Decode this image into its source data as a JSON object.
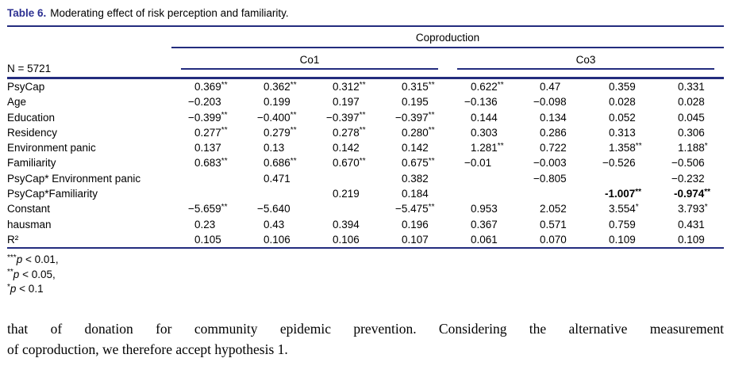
{
  "colors": {
    "rule_navy": "#232c7e",
    "title_navy": "#2d3192",
    "text": "#000000"
  },
  "caption": {
    "label": "Table 6.",
    "text": "Moderating effect of risk perception and familiarity."
  },
  "table": {
    "n_label": "N = 5721",
    "group_header": "Coproduction",
    "subgroups": [
      "Co1",
      "Co3"
    ],
    "rows": [
      {
        "label": "PsyCap",
        "cells": [
          "0.369**",
          "0.362**",
          "0.312**",
          "0.315**",
          "0.622**",
          "0.47",
          "0.359",
          "0.331"
        ]
      },
      {
        "label": "Age",
        "cells": [
          "−0.203",
          "0.199",
          "0.197",
          "0.195",
          "−0.136",
          "−0.098",
          "0.028",
          "0.028"
        ]
      },
      {
        "label": "Education",
        "cells": [
          "−0.399**",
          "−0.400**",
          "−0.397**",
          "−0.397**",
          "0.144",
          "0.134",
          "0.052",
          "0.045"
        ]
      },
      {
        "label": "Residency",
        "cells": [
          "0.277**",
          "0.279**",
          "0.278**",
          "0.280**",
          "0.303",
          "0.286",
          "0.313",
          "0.306"
        ]
      },
      {
        "label": "Environment panic",
        "cells": [
          "0.137",
          "0.13",
          "0.142",
          "0.142",
          "1.281**",
          "0.722",
          "1.358**",
          "1.188*"
        ]
      },
      {
        "label": "Familiarity",
        "cells": [
          "0.683**",
          "0.686**",
          "0.670**",
          "0.675**",
          "−0.01",
          "−0.003",
          "−0.526",
          "−0.506"
        ]
      },
      {
        "label": "PsyCap* Environment panic",
        "cells": [
          "",
          "0.471",
          "",
          "0.382",
          "",
          "−0.805",
          "",
          "−0.232"
        ]
      },
      {
        "label": "PsyCap*Familiarity",
        "cells": [
          "",
          "",
          "0.219",
          "0.184",
          "",
          "",
          {
            "v": "-1.007**",
            "bold": true
          },
          {
            "v": "-0.974**",
            "bold": true
          }
        ]
      },
      {
        "label": "Constant",
        "cells": [
          "−5.659**",
          "−5.640",
          "",
          "−5.475**",
          "0.953",
          "2.052",
          "3.554*",
          "3.793*"
        ]
      },
      {
        "label": "hausman",
        "cells": [
          "0.23",
          "0.43",
          "0.394",
          "0.196",
          "0.367",
          "0.571",
          "0.759",
          "0.431"
        ]
      },
      {
        "label": "R²",
        "cells": [
          "0.105",
          "0.106",
          "0.106",
          "0.107",
          "0.061",
          "0.070",
          "0.109",
          "0.109"
        ]
      }
    ]
  },
  "footnotes": [
    {
      "stars": "***",
      "var": "p",
      "rest": " < 0.01,"
    },
    {
      "stars": "**",
      "var": "p",
      "rest": " < 0.05,"
    },
    {
      "stars": "*",
      "var": "p",
      "rest": " < 0.1"
    }
  ],
  "paragraph": {
    "lines": [
      "that of donation for community epidemic prevention. Considering the alternative measurement",
      "of coproduction, we therefore accept hypothesis 1."
    ]
  }
}
